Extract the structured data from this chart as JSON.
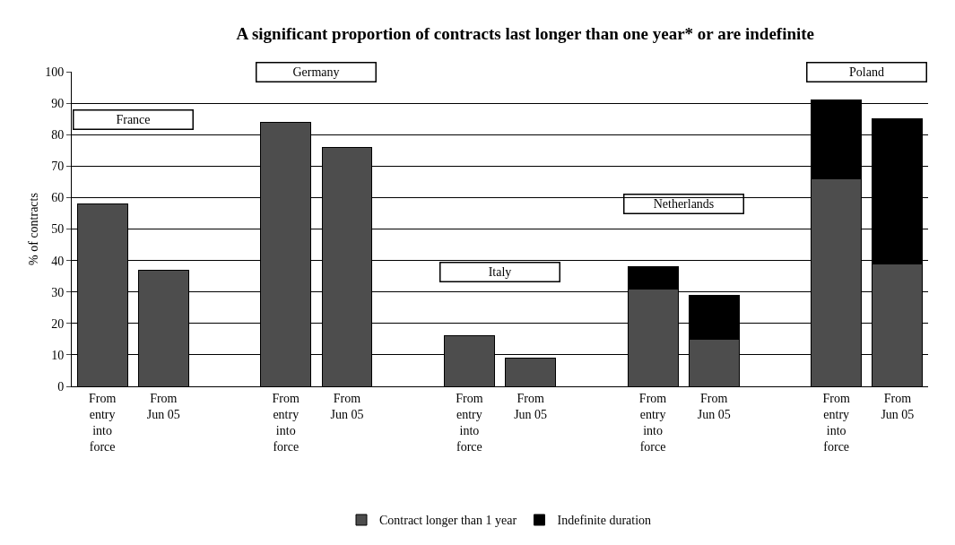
{
  "chart_data": {
    "type": "bar",
    "title": "A significant proportion of contracts last longer than one year* or are indefinite",
    "ylabel": "% of contracts",
    "categories": [
      "From entry into force",
      "From Jun 05",
      null,
      "From entry into force",
      "From Jun 05",
      null,
      "From entry into force",
      "From Jun 05",
      null,
      "From entry into force",
      "From Jun 05",
      null,
      "From entry into force",
      "From Jun 05"
    ],
    "stacked": true,
    "series": [
      {
        "name": "Contract longer than 1 year",
        "color": "#4d4d4d",
        "values": [
          58,
          37,
          null,
          84,
          76,
          null,
          16,
          9,
          null,
          31,
          15,
          null,
          66,
          39
        ]
      },
      {
        "name": "Indefinite duration",
        "color": "#000000",
        "values": [
          0,
          0,
          null,
          0,
          0,
          null,
          0,
          0,
          null,
          7,
          14,
          null,
          25,
          46
        ]
      }
    ],
    "annotations": [
      "France",
      "Germany",
      "Italy",
      "Netherlands",
      "Poland"
    ],
    "ylim": [
      0,
      100
    ],
    "yticks": [
      0,
      10,
      20,
      30,
      40,
      50,
      60,
      70,
      80,
      90,
      100
    ],
    "grid": "y",
    "legend": "bottom"
  }
}
